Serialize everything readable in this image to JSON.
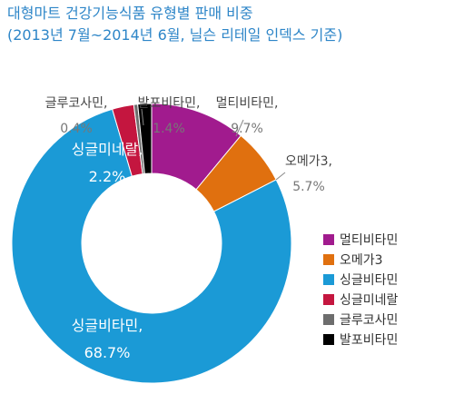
{
  "header": {
    "title": "대형마트 건강기능식품 유형별 판매 비중",
    "subtitle": "(2013년 7월~2014년 6월, 닐슨 리테일 인덱스 기준)"
  },
  "chart_data": {
    "type": "pie",
    "donut": true,
    "title": "대형마트 건강기능식품 유형별 판매 비중",
    "subtitle": "(2013년 7월~2014년 6월, 닐슨 리테일 인덱스 기준)",
    "legend_position": "bottom-right",
    "categories": [
      "멀티비타민",
      "오메가3",
      "싱글비타민",
      "싱글미네랄",
      "글루코사민",
      "발포비타민"
    ],
    "values": [
      9.7,
      5.7,
      68.7,
      2.2,
      0.4,
      1.4
    ],
    "value_labels": [
      "9.7%",
      "5.7%",
      "68.7%",
      "2.2%",
      "0.4%",
      "1.4%"
    ],
    "colors": [
      "#a11b8e",
      "#e0700f",
      "#1b9ad6",
      "#c4163f",
      "#6d6d6d",
      "#000000"
    ]
  }
}
